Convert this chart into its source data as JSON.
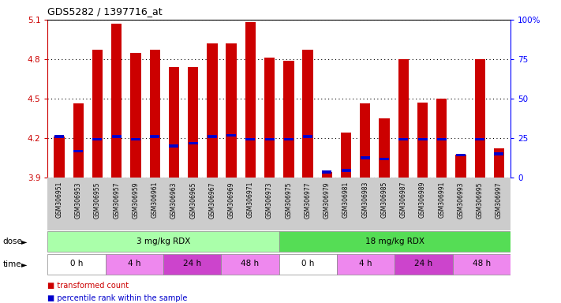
{
  "title": "GDS5282 / 1397716_at",
  "samples": [
    "GSM306951",
    "GSM306953",
    "GSM306955",
    "GSM306957",
    "GSM306959",
    "GSM306961",
    "GSM306963",
    "GSM306965",
    "GSM306967",
    "GSM306969",
    "GSM306971",
    "GSM306973",
    "GSM306975",
    "GSM306977",
    "GSM306979",
    "GSM306981",
    "GSM306983",
    "GSM306985",
    "GSM306987",
    "GSM306989",
    "GSM306991",
    "GSM306993",
    "GSM306995",
    "GSM306997"
  ],
  "bar_values": [
    4.21,
    4.46,
    4.87,
    5.07,
    4.85,
    4.87,
    4.74,
    4.74,
    4.92,
    4.92,
    5.08,
    4.81,
    4.79,
    4.87,
    3.94,
    4.24,
    4.46,
    4.35,
    4.8,
    4.47,
    4.5,
    4.07,
    4.8,
    4.12
  ],
  "percentile_values": [
    4.21,
    4.1,
    4.19,
    4.21,
    4.19,
    4.21,
    4.14,
    4.16,
    4.21,
    4.22,
    4.19,
    4.19,
    4.19,
    4.21,
    3.94,
    3.95,
    4.05,
    4.04,
    4.19,
    4.19,
    4.19,
    4.07,
    4.19,
    4.08
  ],
  "ymin": 3.9,
  "ymax": 5.1,
  "yticks": [
    3.9,
    4.2,
    4.5,
    4.8,
    5.1
  ],
  "right_yticks": [
    0,
    25,
    50,
    75,
    100
  ],
  "right_ytick_labels": [
    "0",
    "25",
    "50",
    "75",
    "100%"
  ],
  "bar_color": "#cc0000",
  "percentile_color": "#0000cc",
  "bar_width": 0.55,
  "dose_groups": [
    {
      "label": "3 mg/kg RDX",
      "start": 0,
      "end": 12,
      "color": "#aaffaa"
    },
    {
      "label": "18 mg/kg RDX",
      "start": 12,
      "end": 24,
      "color": "#55dd55"
    }
  ],
  "time_groups": [
    {
      "label": "0 h",
      "start": 0,
      "end": 3,
      "color": "#ffffff"
    },
    {
      "label": "4 h",
      "start": 3,
      "end": 6,
      "color": "#ee88ee"
    },
    {
      "label": "24 h",
      "start": 6,
      "end": 9,
      "color": "#cc44cc"
    },
    {
      "label": "48 h",
      "start": 9,
      "end": 12,
      "color": "#ee88ee"
    },
    {
      "label": "0 h",
      "start": 12,
      "end": 15,
      "color": "#ffffff"
    },
    {
      "label": "4 h",
      "start": 15,
      "end": 18,
      "color": "#ee88ee"
    },
    {
      "label": "24 h",
      "start": 18,
      "end": 21,
      "color": "#cc44cc"
    },
    {
      "label": "48 h",
      "start": 21,
      "end": 24,
      "color": "#ee88ee"
    }
  ],
  "legend_items": [
    {
      "label": "transformed count",
      "color": "#cc0000"
    },
    {
      "label": "percentile rank within the sample",
      "color": "#0000cc"
    }
  ],
  "xlabel_area_bg": "#cccccc",
  "gridline_color": "#000000"
}
